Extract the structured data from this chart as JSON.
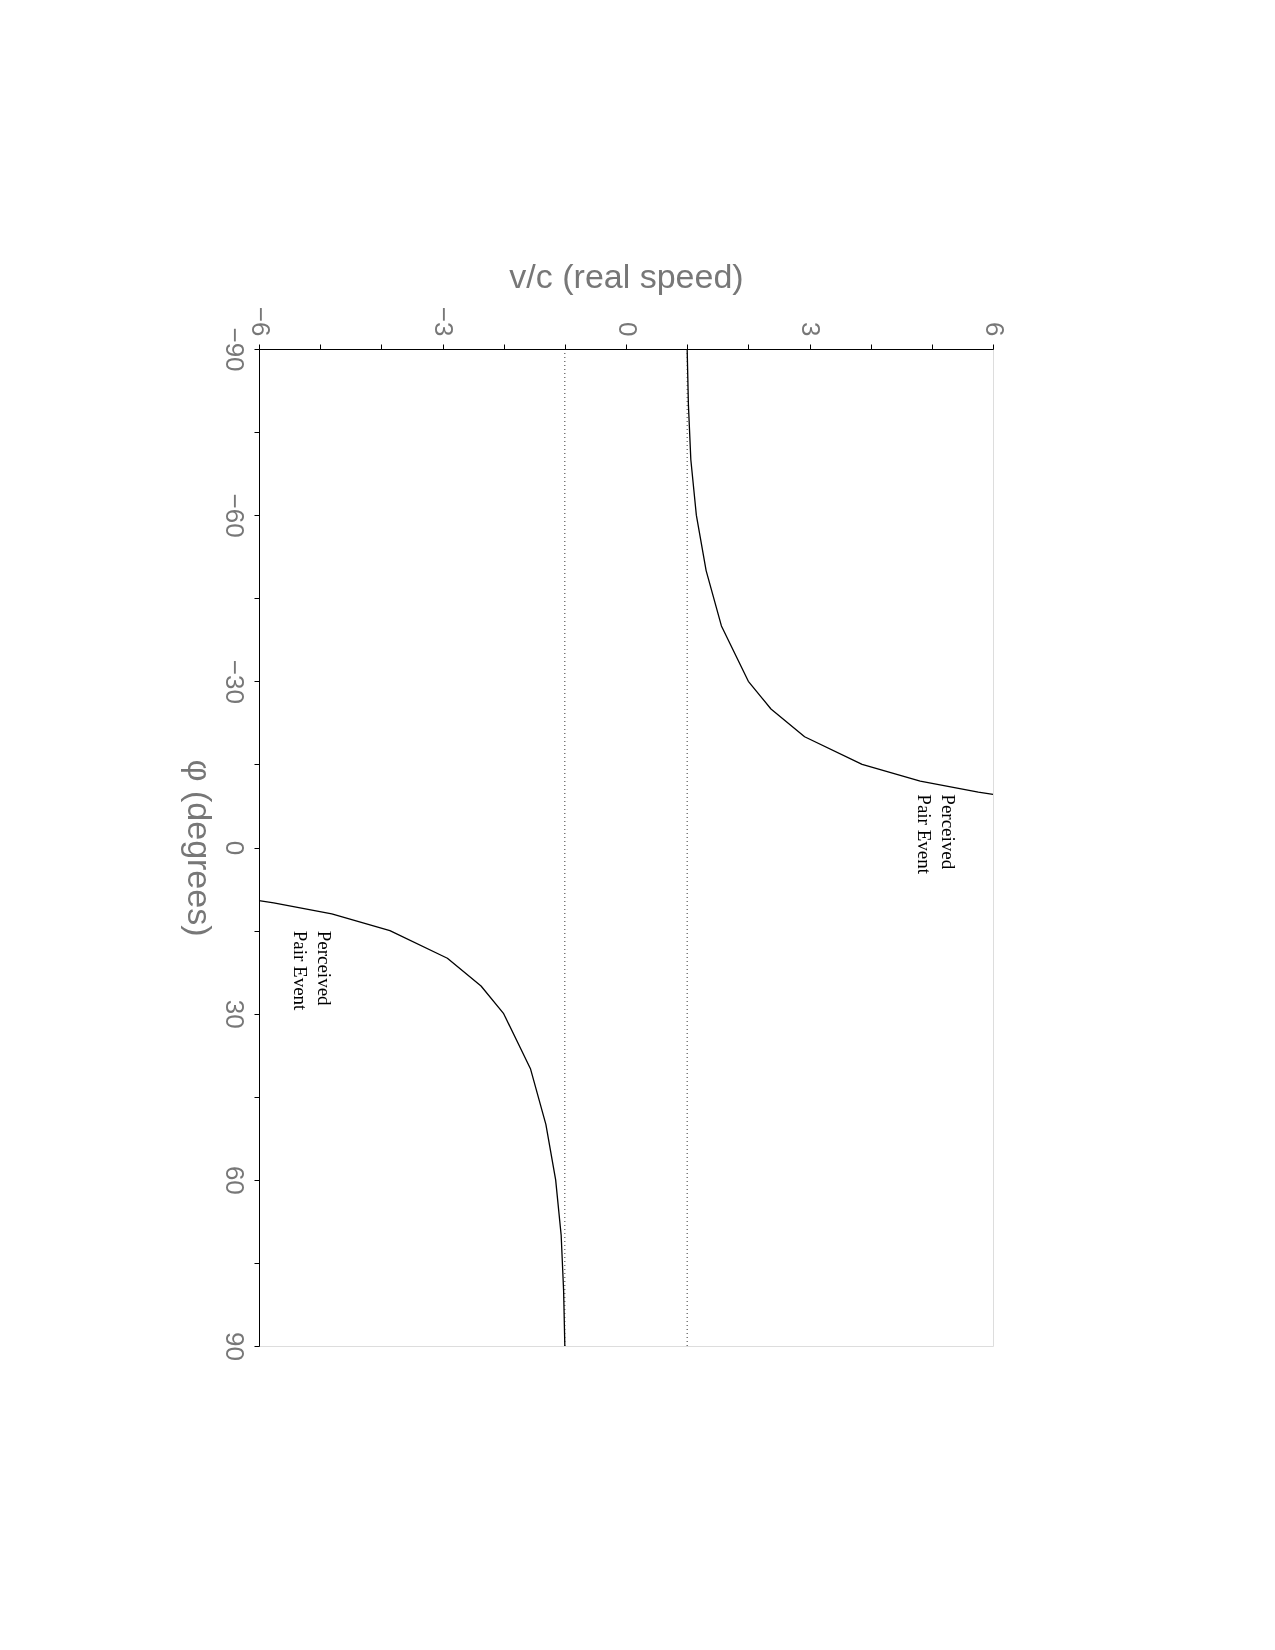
{
  "chart_data": {
    "type": "line",
    "xlabel": "v/c (real speed)",
    "ylabel": "φ (degrees)",
    "xlim": [
      -6,
      6
    ],
    "ylim": [
      90,
      -90
    ],
    "xticks": [
      -6,
      {
        "value": -5,
        "label": null
      },
      {
        "value": -4,
        "label": null
      },
      -3,
      {
        "value": -2,
        "label": null
      },
      {
        "value": -1,
        "label": null
      },
      0,
      {
        "value": 1,
        "label": null
      },
      {
        "value": 2,
        "label": null
      },
      3,
      {
        "value": 4,
        "label": null
      },
      {
        "value": 5,
        "label": null
      },
      6
    ],
    "yticks": [
      -90,
      {
        "value": -75,
        "label": null
      },
      -60,
      {
        "value": -45,
        "label": null
      },
      -30,
      {
        "value": -15,
        "label": null
      },
      0,
      {
        "value": 15,
        "label": null
      },
      30,
      {
        "value": 45,
        "label": null
      },
      60,
      {
        "value": 75,
        "label": null
      },
      90
    ],
    "series": [
      {
        "color": "#000000",
        "x": [
          1.0,
          1.02,
          1.06,
          1.15,
          1.31,
          1.56,
          2.0,
          2.37,
          2.92,
          3.86,
          4.81,
          5.76,
          6.0
        ],
        "values": [
          -90,
          -80,
          -70,
          -60,
          -50,
          -40,
          -30,
          -25,
          -20,
          -15,
          -12,
          -10,
          -9.6
        ]
      },
      {
        "color": "#000000",
        "x": [
          -6.0,
          -5.76,
          -4.81,
          -3.86,
          -2.92,
          -2.37,
          -2.0,
          -1.56,
          -1.31,
          -1.15,
          -1.06,
          -1.02,
          -1.0
        ],
        "values": [
          9.6,
          10,
          12,
          15,
          20,
          25,
          30,
          40,
          50,
          60,
          70,
          80,
          90
        ]
      }
    ],
    "ref_lines": [
      {
        "axis": "x",
        "value": -1,
        "line_style": "dotted"
      },
      {
        "axis": "x",
        "value": 1,
        "line_style": "dotted"
      }
    ],
    "annotations": [
      "Perceived\nPair Event",
      "Perceived\nPair Event"
    ],
    "grid": false,
    "legend": false,
    "line_style": "solid",
    "marker": "none"
  }
}
